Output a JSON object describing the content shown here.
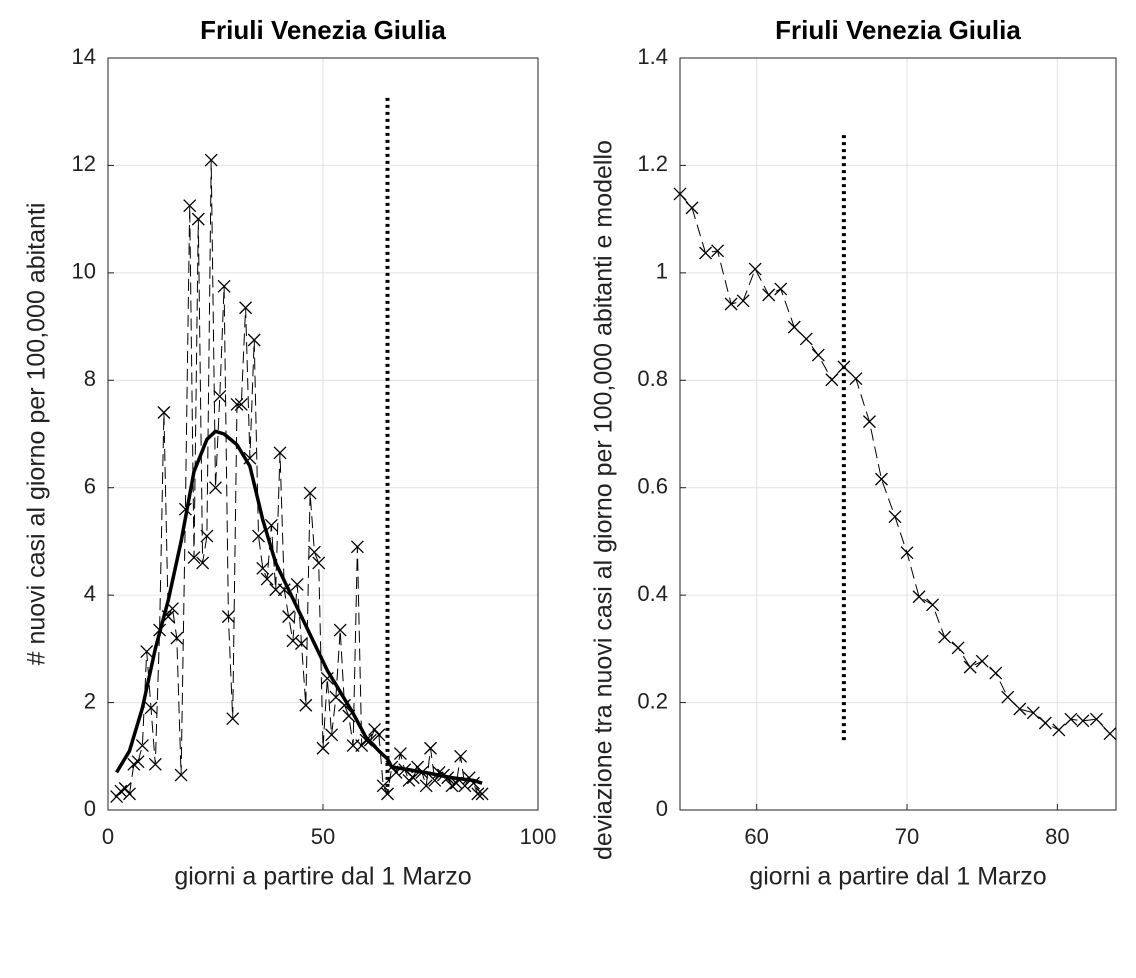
{
  "chart_data": [
    {
      "type": "line",
      "title": "Friuli Venezia Giulia",
      "xlabel": "giorni a partire dal 1 Marzo",
      "ylabel": "# nuovi casi al giorno per 100,000 abitanti",
      "xlim": [
        0,
        100
      ],
      "ylim": [
        0,
        14
      ],
      "xticks": [
        0,
        50,
        100
      ],
      "yticks": [
        0,
        2,
        4,
        6,
        8,
        10,
        12,
        14
      ],
      "grid": true,
      "series": [
        {
          "color": "#000000",
          "style": "dashed",
          "marker": "x",
          "x": [
            2,
            3,
            4,
            5,
            6,
            7,
            8,
            9,
            10,
            11,
            12,
            13,
            14,
            15,
            16,
            17,
            18,
            19,
            20,
            21,
            22,
            23,
            24,
            25,
            26,
            27,
            28,
            29,
            30,
            31,
            32,
            33,
            34,
            35,
            36,
            37,
            38,
            39,
            40,
            41,
            42,
            43,
            44,
            45,
            46,
            47,
            48,
            49,
            50,
            51,
            52,
            53,
            54,
            55,
            56,
            57,
            58,
            59,
            60,
            61,
            62,
            63,
            64,
            65,
            66,
            67,
            68,
            69,
            70,
            71,
            72,
            73,
            74,
            75,
            76,
            77,
            78,
            79,
            80,
            81,
            82,
            83,
            84,
            85,
            86,
            87
          ],
          "values": [
            0.25,
            0.35,
            0.4,
            0.3,
            0.85,
            0.9,
            1.2,
            2.95,
            1.9,
            0.85,
            3.35,
            7.4,
            3.6,
            3.75,
            3.2,
            0.65,
            5.6,
            11.25,
            4.7,
            11.0,
            4.6,
            5.1,
            12.1,
            6.0,
            7.7,
            9.75,
            3.6,
            1.7,
            7.55,
            7.55,
            9.35,
            6.55,
            8.75,
            5.1,
            4.5,
            4.3,
            5.3,
            4.1,
            6.65,
            4.1,
            3.6,
            3.15,
            4.2,
            3.1,
            1.95,
            5.9,
            4.8,
            4.6,
            1.15,
            2.45,
            1.4,
            2.1,
            3.35,
            1.95,
            1.75,
            1.2,
            4.9,
            1.2,
            1.3,
            1.3,
            1.5,
            1.4,
            0.45,
            0.3,
            0.8,
            0.7,
            1.05,
            0.75,
            0.55,
            0.6,
            0.8,
            0.7,
            0.45,
            1.15,
            0.55,
            0.7,
            0.65,
            0.6,
            0.45,
            0.5,
            1.0,
            0.45,
            0.6,
            0.5,
            0.3,
            0.3
          ]
        },
        {
          "color": "#000000",
          "style": "thick",
          "x": [
            2,
            5,
            8,
            11,
            14,
            17,
            20,
            23,
            25,
            27,
            30,
            33,
            36,
            39,
            42,
            45,
            48,
            51,
            54,
            57,
            60,
            63,
            65,
            66,
            70,
            75,
            80,
            85,
            87
          ],
          "values": [
            0.7,
            1.1,
            1.9,
            3.0,
            3.9,
            5.0,
            6.3,
            6.9,
            7.05,
            7.0,
            6.8,
            6.4,
            5.4,
            4.6,
            4.1,
            3.6,
            3.1,
            2.6,
            2.2,
            1.8,
            1.35,
            1.1,
            0.95,
            0.8,
            0.75,
            0.68,
            0.6,
            0.55,
            0.5
          ]
        }
      ],
      "vlines": [
        {
          "x": 65,
          "y": [
            0.3,
            13.3
          ],
          "color": "#000000",
          "style": "dotted"
        }
      ]
    },
    {
      "type": "line",
      "title": "Friuli Venezia Giulia",
      "xlabel": "giorni a partire dal 1 Marzo",
      "ylabel": "deviazione tra nuovi casi al giorno per 100,000 abitanti e modello",
      "xlim": [
        54.9,
        83.9
      ],
      "ylim": [
        0,
        1.4
      ],
      "xticks": [
        60,
        70,
        80
      ],
      "yticks": [
        0,
        0.2,
        0.4,
        0.6,
        0.8,
        1,
        1.2,
        1.4
      ],
      "grid": true,
      "series": [
        {
          "color": "#000000",
          "style": "dashed",
          "marker": "x",
          "x": [
            54.9,
            55.7,
            56.6,
            57.4,
            58.3,
            59.1,
            59.9,
            60.8,
            61.6,
            62.5,
            63.3,
            64.1,
            65.0,
            65.8,
            66.6,
            67.5,
            68.3,
            69.2,
            70.0,
            70.8,
            71.7,
            72.5,
            73.4,
            74.2,
            75.0,
            75.9,
            76.7,
            77.5,
            78.4,
            79.2,
            80.1,
            80.9,
            81.7,
            82.6,
            83.5
          ],
          "values": [
            1.147,
            1.121,
            1.037,
            1.041,
            0.942,
            0.948,
            1.007,
            0.959,
            0.97,
            0.899,
            0.877,
            0.847,
            0.801,
            0.825,
            0.803,
            0.723,
            0.616,
            0.546,
            0.479,
            0.397,
            0.382,
            0.322,
            0.302,
            0.266,
            0.277,
            0.255,
            0.21,
            0.188,
            0.181,
            0.162,
            0.149,
            0.169,
            0.166,
            0.169,
            0.142
          ]
        }
      ],
      "vlines": [
        {
          "x": 65.8,
          "y": [
            0.13,
            1.26
          ],
          "color": "#000000",
          "style": "dotted"
        }
      ]
    }
  ]
}
